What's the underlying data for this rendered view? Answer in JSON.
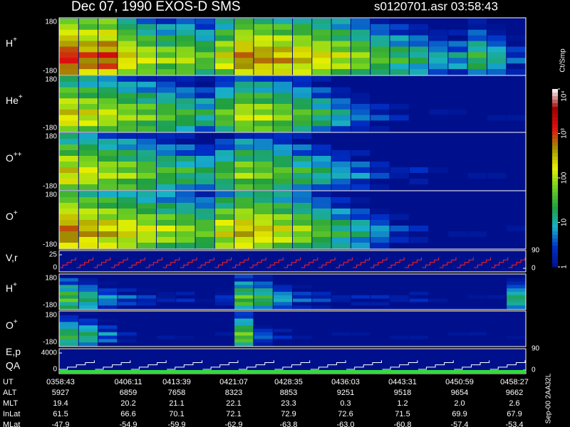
{
  "header": {
    "title": "Dec 07, 1990    EXOS-D SMS",
    "file": "s0120701.asr  03:58:43"
  },
  "chart_data": [
    {
      "type": "heatmap",
      "label": "H",
      "charge": "+",
      "ylim": [
        -180,
        180
      ],
      "yticks": [
        180,
        -180
      ],
      "values": [
        1500,
        900,
        1200,
        300,
        150,
        90,
        120,
        60,
        200,
        700,
        600,
        450,
        350,
        250,
        150,
        90,
        50,
        30,
        20,
        12,
        10,
        30,
        15,
        4
      ]
    },
    {
      "type": "heatmap",
      "label": "He",
      "charge": "+",
      "ylim": [
        -180,
        180
      ],
      "yticks": [
        180,
        -180
      ],
      "values": [
        300,
        200,
        150,
        100,
        70,
        50,
        35,
        20,
        60,
        150,
        120,
        80,
        50,
        25,
        12,
        6,
        3,
        2,
        1,
        1,
        1,
        1,
        1,
        1
      ]
    },
    {
      "type": "heatmap",
      "label": "O",
      "charge": "++",
      "ylim": [
        -180,
        180
      ],
      "yticks": [
        180,
        -180
      ],
      "values": [
        250,
        180,
        120,
        90,
        60,
        40,
        30,
        20,
        40,
        90,
        70,
        50,
        30,
        18,
        10,
        6,
        3,
        2,
        2,
        1,
        1,
        1,
        1,
        1
      ]
    },
    {
      "type": "heatmap",
      "label": "O",
      "charge": "+",
      "ylim": [
        -180,
        180
      ],
      "yticks": [
        180,
        -180
      ],
      "values": [
        800,
        500,
        350,
        250,
        180,
        120,
        90,
        60,
        200,
        400,
        300,
        180,
        100,
        50,
        25,
        15,
        8,
        3,
        2,
        1,
        1,
        1,
        1,
        1
      ]
    },
    {
      "type": "line",
      "label": "V,r",
      "color": "#ff2020",
      "ylim": [
        0,
        25
      ],
      "yticks": [
        25,
        0
      ],
      "y2lim": [
        0,
        90
      ],
      "y2ticks": [
        90,
        0
      ],
      "values": [
        20,
        20,
        20,
        20,
        20,
        20,
        20,
        20,
        20,
        20,
        20,
        20,
        20,
        20,
        20,
        20,
        20,
        20,
        20,
        20,
        20,
        20,
        20,
        20,
        20,
        20,
        20
      ]
    },
    {
      "type": "heatmap",
      "label": "H",
      "charge": "+",
      "ylim": [
        -180,
        180
      ],
      "yticks": [
        180,
        -180
      ],
      "values": [
        40,
        20,
        8,
        4,
        3,
        2,
        2,
        1,
        3,
        50,
        30,
        10,
        4,
        3,
        2,
        2,
        2,
        2,
        2,
        1,
        1,
        1,
        1,
        20
      ]
    },
    {
      "type": "heatmap",
      "label": "O",
      "charge": "+",
      "ylim": [
        -180,
        180
      ],
      "yticks": [
        180,
        -180
      ],
      "values": [
        30,
        20,
        6,
        2,
        1,
        1,
        1,
        1,
        1,
        60,
        5,
        2,
        1,
        1,
        1,
        1,
        1,
        1,
        1,
        1,
        1,
        1,
        1,
        1
      ]
    },
    {
      "type": "line",
      "label": "E,p",
      "label2": "QA",
      "color": "#ffffff",
      "ylim": [
        0,
        4000
      ],
      "yticks": [
        4000,
        0
      ],
      "y2lim": [
        0,
        90
      ],
      "y2ticks": [
        90,
        0
      ],
      "values": [
        2200,
        2200,
        2200,
        2200,
        2200,
        2200,
        2200,
        2200,
        2200,
        2200,
        2200,
        2200,
        2200
      ]
    }
  ],
  "colorbar": {
    "unit": "Ct/Smp",
    "log": true,
    "lim": [
      1,
      10000
    ],
    "colorscale": [
      "#00108c",
      "#0030c8",
      "#18b0c8",
      "#20a040",
      "#70d020",
      "#e8f000",
      "#a09000",
      "#e01010",
      "#a00000",
      "#ffffff"
    ],
    "ticks": [
      {
        "value": 10000,
        "label": "10⁴"
      },
      {
        "value": 1000,
        "label": "10³"
      },
      100,
      10,
      1
    ]
  },
  "footer": "Sep-00  2AA32L",
  "table": {
    "rows": [
      [
        "UT",
        "0358:43",
        "0406:11",
        "0413:39",
        "0421:07",
        "0428:35",
        "0436:03",
        "0443:31",
        "0450:59",
        "0458:27"
      ],
      [
        "ALT",
        "5927",
        "6859",
        "7658",
        "8323",
        "8853",
        "9251",
        "9518",
        "9654",
        "9662"
      ],
      [
        "MLT",
        "19.4",
        "20.2",
        "21.1",
        "22.1",
        "23.3",
        "0.3",
        "1.2",
        "2.0",
        "2.6"
      ],
      [
        "InLat",
        "61.5",
        "66.6",
        "70.1",
        "72.1",
        "72.9",
        "72.6",
        "71.5",
        "69.9",
        "67.9"
      ],
      [
        "MLat",
        "-47.9",
        "-54.9",
        "-59.9",
        "-62.9",
        "-63.8",
        "-63.0",
        "-60.8",
        "-57.4",
        "-53.4"
      ]
    ]
  }
}
